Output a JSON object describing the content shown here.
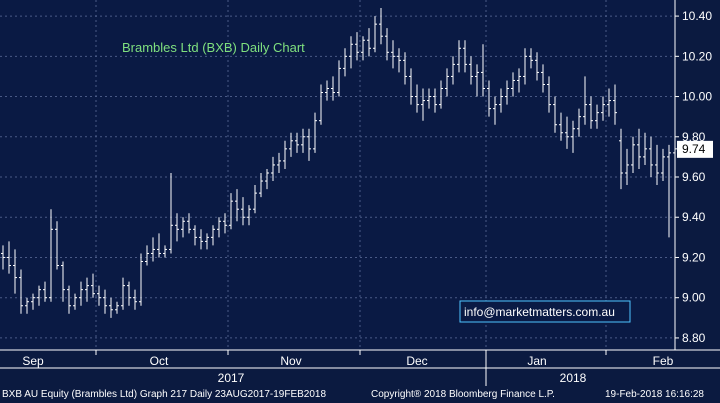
{
  "chart_data": {
    "type": "ohlc",
    "title": "Brambles Ltd (BXB) Daily Chart",
    "ylim": [
      8.74,
      10.48
    ],
    "yticks": [
      8.8,
      9.0,
      9.2,
      9.4,
      9.6,
      9.8,
      10.0,
      10.2,
      10.4
    ],
    "ytick_labels": [
      "8.80",
      "9.00",
      "9.20",
      "9.40",
      "9.60",
      "9.80",
      "10.00",
      "10.20",
      "10.40"
    ],
    "month_labels": [
      {
        "label": "Sep",
        "index": 5
      },
      {
        "label": "Oct",
        "index": 26
      },
      {
        "label": "Nov",
        "index": 48
      },
      {
        "label": "Dec",
        "index": 69
      },
      {
        "label": "Jan",
        "index": 89
      },
      {
        "label": "Feb",
        "index": 110
      }
    ],
    "month_boundaries": [
      15.5,
      37.5,
      59.5,
      80.5,
      100.5
    ],
    "year_labels": [
      {
        "label": "2017",
        "index": 38
      },
      {
        "label": "2018",
        "index": 95
      }
    ],
    "year_boundaries": [
      80.5
    ],
    "grid": true,
    "last_price": 9.74,
    "last_price_label": "9.74",
    "watermark": "info@marketmatters.com.au",
    "bars": [
      [
        9.22,
        9.26,
        9.14,
        9.2
      ],
      [
        9.2,
        9.28,
        9.12,
        9.16
      ],
      [
        9.16,
        9.24,
        9.02,
        9.1
      ],
      [
        9.1,
        9.14,
        8.92,
        8.96
      ],
      [
        8.96,
        9.0,
        8.92,
        8.98
      ],
      [
        8.98,
        9.02,
        8.94,
        9.0
      ],
      [
        9.0,
        9.06,
        8.96,
        9.04
      ],
      [
        9.04,
        9.08,
        8.98,
        9.0
      ],
      [
        9.0,
        9.44,
        8.98,
        9.34
      ],
      [
        9.34,
        9.38,
        9.14,
        9.16
      ],
      [
        9.16,
        9.18,
        8.98,
        9.04
      ],
      [
        9.04,
        9.06,
        8.92,
        8.96
      ],
      [
        8.96,
        9.02,
        8.94,
        9.0
      ],
      [
        9.0,
        9.08,
        8.96,
        9.04
      ],
      [
        9.04,
        9.1,
        8.98,
        9.06
      ],
      [
        9.06,
        9.12,
        9.0,
        9.02
      ],
      [
        9.02,
        9.06,
        8.96,
        9.0
      ],
      [
        9.0,
        9.04,
        8.92,
        8.96
      ],
      [
        8.96,
        9.0,
        8.9,
        8.94
      ],
      [
        8.94,
        8.98,
        8.92,
        8.96
      ],
      [
        8.96,
        9.1,
        8.94,
        9.06
      ],
      [
        9.06,
        9.08,
        8.96,
        9.0
      ],
      [
        9.0,
        9.04,
        8.94,
        8.98
      ],
      [
        8.98,
        9.22,
        8.96,
        9.18
      ],
      [
        9.18,
        9.26,
        9.16,
        9.22
      ],
      [
        9.22,
        9.3,
        9.18,
        9.24
      ],
      [
        9.24,
        9.32,
        9.2,
        9.22
      ],
      [
        9.22,
        9.26,
        9.2,
        9.24
      ],
      [
        9.24,
        9.62,
        9.22,
        9.36
      ],
      [
        9.36,
        9.42,
        9.28,
        9.34
      ],
      [
        9.34,
        9.4,
        9.3,
        9.38
      ],
      [
        9.38,
        9.42,
        9.32,
        9.34
      ],
      [
        9.34,
        9.36,
        9.26,
        9.3
      ],
      [
        9.3,
        9.34,
        9.24,
        9.28
      ],
      [
        9.28,
        9.32,
        9.24,
        9.3
      ],
      [
        9.3,
        9.36,
        9.26,
        9.34
      ],
      [
        9.34,
        9.4,
        9.3,
        9.38
      ],
      [
        9.38,
        9.42,
        9.32,
        9.36
      ],
      [
        9.36,
        9.52,
        9.34,
        9.48
      ],
      [
        9.48,
        9.54,
        9.38,
        9.44
      ],
      [
        9.44,
        9.5,
        9.36,
        9.4
      ],
      [
        9.4,
        9.46,
        9.36,
        9.44
      ],
      [
        9.44,
        9.56,
        9.42,
        9.52
      ],
      [
        9.52,
        9.62,
        9.5,
        9.58
      ],
      [
        9.58,
        9.64,
        9.54,
        9.62
      ],
      [
        9.62,
        9.7,
        9.58,
        9.66
      ],
      [
        9.66,
        9.72,
        9.62,
        9.68
      ],
      [
        9.68,
        9.78,
        9.64,
        9.74
      ],
      [
        9.74,
        9.82,
        9.7,
        9.78
      ],
      [
        9.78,
        9.82,
        9.72,
        9.76
      ],
      [
        9.76,
        9.84,
        9.72,
        9.8
      ],
      [
        9.8,
        9.84,
        9.68,
        9.74
      ],
      [
        9.74,
        9.92,
        9.72,
        9.88
      ],
      [
        9.88,
        10.06,
        9.86,
        10.02
      ],
      [
        10.02,
        10.08,
        9.98,
        10.04
      ],
      [
        10.04,
        10.1,
        9.98,
        10.02
      ],
      [
        10.02,
        10.18,
        10.0,
        10.14
      ],
      [
        10.14,
        10.24,
        10.1,
        10.2
      ],
      [
        10.2,
        10.3,
        10.14,
        10.26
      ],
      [
        10.26,
        10.32,
        10.18,
        10.22
      ],
      [
        10.22,
        10.3,
        10.18,
        10.28
      ],
      [
        10.28,
        10.34,
        10.2,
        10.24
      ],
      [
        10.24,
        10.4,
        10.22,
        10.36
      ],
      [
        10.36,
        10.44,
        10.26,
        10.3
      ],
      [
        10.3,
        10.34,
        10.18,
        10.22
      ],
      [
        10.22,
        10.28,
        10.14,
        10.2
      ],
      [
        10.2,
        10.24,
        10.12,
        10.18
      ],
      [
        10.18,
        10.22,
        10.06,
        10.1
      ],
      [
        10.1,
        10.14,
        9.96,
        10.0
      ],
      [
        10.0,
        10.06,
        9.92,
        9.96
      ],
      [
        9.96,
        10.04,
        9.88,
        9.98
      ],
      [
        9.98,
        10.04,
        9.94,
        10.0
      ],
      [
        10.0,
        10.04,
        9.92,
        9.96
      ],
      [
        9.96,
        10.08,
        9.94,
        10.04
      ],
      [
        10.04,
        10.14,
        10.0,
        10.1
      ],
      [
        10.1,
        10.2,
        10.06,
        10.16
      ],
      [
        10.16,
        10.28,
        10.12,
        10.24
      ],
      [
        10.24,
        10.28,
        10.12,
        10.16
      ],
      [
        10.16,
        10.2,
        10.06,
        10.1
      ],
      [
        10.1,
        10.16,
        10.0,
        10.12
      ],
      [
        10.12,
        10.26,
        10.0,
        10.04
      ],
      [
        10.04,
        10.08,
        9.9,
        9.94
      ],
      [
        9.94,
        10.0,
        9.86,
        9.96
      ],
      [
        9.96,
        10.04,
        9.92,
        10.0
      ],
      [
        10.0,
        10.08,
        9.96,
        10.04
      ],
      [
        10.04,
        10.12,
        10.0,
        10.08
      ],
      [
        10.08,
        10.14,
        10.02,
        10.1
      ],
      [
        10.1,
        10.24,
        10.06,
        10.2
      ],
      [
        10.2,
        10.24,
        10.14,
        10.18
      ],
      [
        10.18,
        10.22,
        10.08,
        10.12
      ],
      [
        10.12,
        10.16,
        10.02,
        10.06
      ],
      [
        10.06,
        10.1,
        9.92,
        9.96
      ],
      [
        9.96,
        10.0,
        9.82,
        9.86
      ],
      [
        9.86,
        9.92,
        9.78,
        9.82
      ],
      [
        9.82,
        9.9,
        9.74,
        9.8
      ],
      [
        9.8,
        9.88,
        9.72,
        9.84
      ],
      [
        9.84,
        9.94,
        9.8,
        9.9
      ],
      [
        9.9,
        10.1,
        9.86,
        9.96
      ],
      [
        9.96,
        10.0,
        9.84,
        9.88
      ],
      [
        9.88,
        9.96,
        9.84,
        9.92
      ],
      [
        9.92,
        10.0,
        9.88,
        9.96
      ],
      [
        9.96,
        10.04,
        9.9,
        9.98
      ],
      [
        9.98,
        10.06,
        9.86,
        9.92
      ],
      [
        9.78,
        9.84,
        9.54,
        9.62
      ],
      [
        9.62,
        9.74,
        9.56,
        9.66
      ],
      [
        9.66,
        9.8,
        9.62,
        9.76
      ],
      [
        9.76,
        9.84,
        9.64,
        9.7
      ],
      [
        9.7,
        9.82,
        9.66,
        9.74
      ],
      [
        9.74,
        9.8,
        9.6,
        9.66
      ],
      [
        9.66,
        9.76,
        9.56,
        9.62
      ],
      [
        9.62,
        9.74,
        9.58,
        9.7
      ],
      [
        9.7,
        9.76,
        9.3,
        9.72
      ],
      [
        9.72,
        9.9,
        9.66,
        9.74
      ]
    ]
  },
  "footer": {
    "left": "BXB AU Equity (Brambles Ltd) Graph 217  Daily 23AUG2017-19FEB2018",
    "copyright": "Copyright® 2018 Bloomberg Finance L.P.",
    "timestamp": "19-Feb-2018 16:16:28"
  }
}
